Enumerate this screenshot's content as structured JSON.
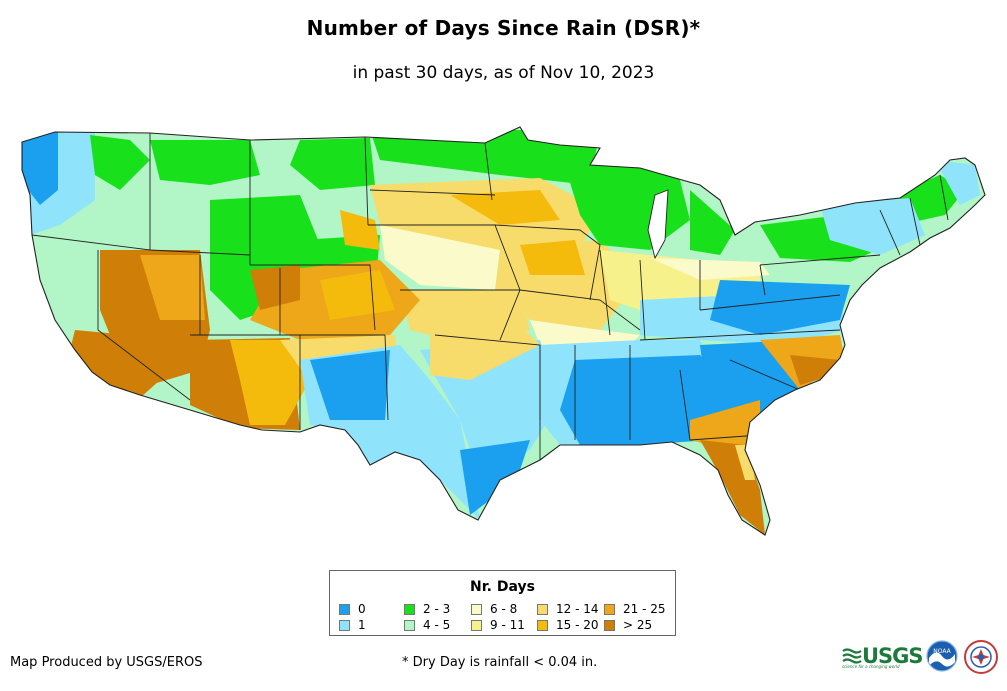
{
  "title": "Number of Days Since Rain (DSR)*",
  "subtitle": "in past 30 days, as of Nov 10, 2023",
  "legend": {
    "title": "Nr. Days",
    "items": [
      {
        "label": "0",
        "color": "#1aa0ef"
      },
      {
        "label": "1",
        "color": "#8fe3fb"
      },
      {
        "label": "2 - 3",
        "color": "#18e11c"
      },
      {
        "label": "4 - 5",
        "color": "#b2f5c6"
      },
      {
        "label": "6 - 8",
        "color": "#fbfacb"
      },
      {
        "label": "9 - 11",
        "color": "#f7f18c"
      },
      {
        "label": "12 - 14",
        "color": "#f7dc6b"
      },
      {
        "label": "15 - 20",
        "color": "#f5bb0c"
      },
      {
        "label": "21 - 25",
        "color": "#eda718"
      },
      {
        "label": "> 25",
        "color": "#cf7f08"
      }
    ]
  },
  "footer": {
    "credit": "Map Produced by USGS/EROS",
    "note": "* Dry Day is rainfall < 0.04 in."
  },
  "logos": {
    "usgs": "USGS",
    "usgs_tagline": "science for a changing world",
    "noaa": "NOAA"
  }
}
